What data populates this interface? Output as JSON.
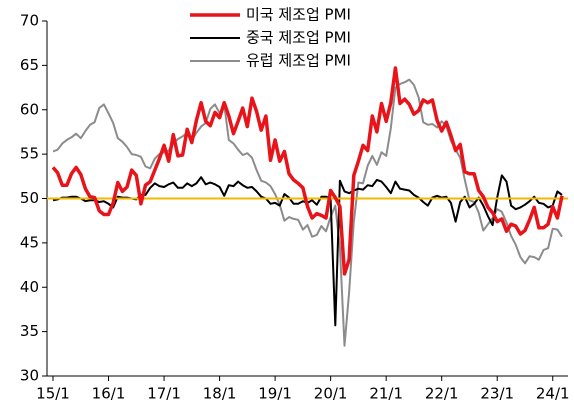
{
  "chart_data": {
    "type": "line",
    "categories": [
      "15/1",
      null,
      null,
      null,
      null,
      null,
      null,
      null,
      null,
      null,
      null,
      null,
      "16/1",
      null,
      null,
      null,
      null,
      null,
      null,
      null,
      null,
      null,
      null,
      null,
      "17/1",
      null,
      null,
      null,
      null,
      null,
      null,
      null,
      null,
      null,
      null,
      null,
      "18/1",
      null,
      null,
      null,
      null,
      null,
      null,
      null,
      null,
      null,
      null,
      null,
      "19/1",
      null,
      null,
      null,
      null,
      null,
      null,
      null,
      null,
      null,
      null,
      null,
      "20/1",
      null,
      null,
      null,
      null,
      null,
      null,
      null,
      null,
      null,
      null,
      null,
      "21/1",
      null,
      null,
      null,
      null,
      null,
      null,
      null,
      null,
      null,
      null,
      null,
      "22/1",
      null,
      null,
      null,
      null,
      null,
      null,
      null,
      null,
      null,
      null,
      null,
      "23/1",
      null,
      null,
      null,
      null,
      null,
      null,
      null,
      null,
      null,
      null,
      null,
      "24/1",
      null,
      null
    ],
    "series": [
      {
        "name": "미국 제조업 PMI",
        "color": "#e8141a",
        "width": 3.5,
        "values": [
          53.5,
          52.9,
          51.5,
          51.5,
          52.8,
          53.5,
          52.7,
          51.1,
          50.2,
          50.1,
          48.6,
          48.2,
          48.2,
          49.5,
          51.8,
          50.8,
          51.3,
          53.2,
          52.6,
          49.4,
          51.5,
          51.9,
          53.2,
          54.5,
          56.0,
          54.2,
          57.2,
          54.8,
          54.9,
          57.8,
          56.3,
          58.8,
          60.8,
          58.7,
          58.2,
          59.7,
          59.1,
          60.8,
          59.3,
          57.3,
          58.7,
          60.2,
          58.1,
          61.3,
          59.8,
          57.7,
          59.3,
          54.3,
          56.6,
          54.2,
          55.3,
          52.8,
          52.1,
          51.7,
          51.2,
          49.1,
          47.8,
          48.3,
          48.1,
          47.8,
          50.9,
          50.1,
          49.1,
          41.5,
          43.1,
          52.6,
          54.2,
          56.0,
          55.4,
          59.3,
          57.5,
          60.7,
          58.7,
          60.8,
          64.7,
          60.7,
          61.2,
          60.6,
          59.5,
          59.9,
          61.1,
          60.8,
          61.1,
          58.8,
          57.6,
          58.6,
          57.1,
          55.4,
          56.1,
          53.0,
          52.8,
          52.8,
          50.9,
          50.2,
          49.0,
          48.4,
          47.4,
          47.7,
          46.3,
          47.1,
          46.9,
          46.0,
          46.4,
          47.6,
          49.0,
          46.7,
          46.7,
          47.1,
          49.1,
          47.8,
          50.3
        ]
      },
      {
        "name": "중국 제조업 PMI",
        "color": "#000000",
        "width": 2,
        "values": [
          49.8,
          49.9,
          50.1,
          50.1,
          50.2,
          50.2,
          50.0,
          49.7,
          49.8,
          49.8,
          49.6,
          49.7,
          49.4,
          49.0,
          50.2,
          50.1,
          50.1,
          50.0,
          49.9,
          50.4,
          50.4,
          51.2,
          51.7,
          51.4,
          51.3,
          51.6,
          51.8,
          51.2,
          51.2,
          51.7,
          51.4,
          51.7,
          52.4,
          51.6,
          51.8,
          51.6,
          51.3,
          50.3,
          51.5,
          51.4,
          51.9,
          51.5,
          51.2,
          51.3,
          50.8,
          50.2,
          50.0,
          49.4,
          49.5,
          49.2,
          50.5,
          50.1,
          49.4,
          49.4,
          49.7,
          49.5,
          49.8,
          49.3,
          50.2,
          50.2,
          50.0,
          35.7,
          52.0,
          50.8,
          50.6,
          50.9,
          51.1,
          51.0,
          51.5,
          51.4,
          52.1,
          51.9,
          51.3,
          50.6,
          51.9,
          51.1,
          51.0,
          50.9,
          50.4,
          50.1,
          49.6,
          49.2,
          50.1,
          50.3,
          50.1,
          50.2,
          49.5,
          47.4,
          49.6,
          50.2,
          49.0,
          49.4,
          50.1,
          49.2,
          48.0,
          47.0,
          50.1,
          52.6,
          51.9,
          49.2,
          48.8,
          49.0,
          49.3,
          49.7,
          50.2,
          49.5,
          49.4,
          49.0,
          49.2,
          50.8,
          50.4
        ]
      },
      {
        "name": "유럽 제조업 PMI",
        "color": "#8c8c8c",
        "width": 2,
        "values": [
          55.3,
          55.5,
          56.2,
          56.6,
          56.9,
          57.3,
          56.8,
          57.6,
          58.3,
          58.6,
          60.2,
          60.6,
          59.6,
          58.5,
          56.8,
          56.4,
          55.8,
          55.0,
          54.9,
          54.7,
          53.6,
          53.4,
          54.5,
          55.0,
          55.2,
          55.4,
          56.2,
          56.7,
          57.0,
          57.4,
          56.6,
          57.4,
          58.1,
          58.5,
          60.1,
          60.6,
          59.6,
          60.6,
          56.6,
          56.2,
          55.5,
          54.9,
          55.1,
          54.6,
          53.2,
          52.0,
          51.8,
          51.4,
          50.5,
          49.3,
          47.5,
          47.9,
          47.7,
          47.6,
          46.5,
          47.0,
          45.7,
          45.9,
          46.9,
          46.3,
          47.9,
          49.2,
          44.5,
          33.4,
          39.4,
          47.4,
          51.8,
          51.7,
          53.7,
          54.8,
          53.8,
          55.2,
          54.8,
          57.9,
          62.5,
          62.9,
          63.1,
          63.4,
          62.8,
          61.4,
          58.6,
          58.3,
          58.4,
          58.0,
          58.7,
          58.2,
          56.5,
          55.5,
          54.6,
          52.1,
          49.8,
          49.6,
          48.4,
          46.4,
          47.1,
          47.8,
          48.8,
          48.5,
          47.3,
          45.8,
          44.8,
          43.4,
          42.7,
          43.5,
          43.4,
          43.1,
          44.2,
          44.4,
          46.6,
          46.5,
          45.7
        ]
      }
    ],
    "reference_line": {
      "value": 50,
      "color": "#f5b800"
    },
    "ylim": [
      30,
      70
    ],
    "yticks": [
      30,
      35,
      40,
      45,
      50,
      55,
      60,
      65,
      70
    ],
    "grid": false,
    "legend": "top"
  }
}
